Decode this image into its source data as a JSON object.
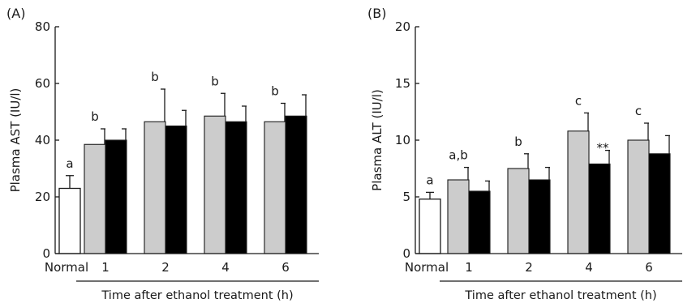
{
  "chart_data": [
    {
      "type": "bar",
      "panel_label": "(A)",
      "ylabel": "Plasma AST (IU/l)",
      "xlabel": "Time after ethanol treatment (h)",
      "ylim": [
        0,
        80
      ],
      "yticks": [
        "0",
        "20",
        "40",
        "60",
        "80"
      ],
      "categories": [
        "Normal",
        "1",
        "2",
        "4",
        "6"
      ],
      "colors": {
        "normal": "#ffffff",
        "grey": "#cccccc",
        "black": "#000000"
      },
      "normal": {
        "value": 23.0,
        "error": 4.5,
        "sig": "a"
      },
      "grey": {
        "values": [
          null,
          38.5,
          46.5,
          48.5,
          46.5
        ],
        "errors": [
          null,
          5.5,
          11.5,
          8.0,
          6.5
        ],
        "sig": [
          null,
          "b",
          "b",
          "b",
          "b"
        ]
      },
      "black": {
        "values": [
          null,
          40.0,
          45.0,
          46.5,
          48.5
        ],
        "errors": [
          null,
          4.0,
          5.5,
          5.5,
          7.5
        ],
        "sig": [
          null,
          "",
          "",
          "",
          ""
        ]
      },
      "grid": false
    },
    {
      "type": "bar",
      "panel_label": "(B)",
      "ylabel": "Plasma ALT (IU/l)",
      "xlabel": "Time after ethanol treatment (h)",
      "ylim": [
        0,
        20
      ],
      "yticks": [
        "0",
        "5",
        "10",
        "15",
        "20"
      ],
      "categories": [
        "Normal",
        "1",
        "2",
        "4",
        "6"
      ],
      "colors": {
        "normal": "#ffffff",
        "grey": "#cccccc",
        "black": "#000000"
      },
      "normal": {
        "value": 4.8,
        "error": 0.6,
        "sig": "a"
      },
      "grey": {
        "values": [
          null,
          6.5,
          7.5,
          10.8,
          10.0
        ],
        "errors": [
          null,
          1.1,
          1.3,
          1.6,
          1.5
        ],
        "sig": [
          null,
          "a,b",
          "b",
          "c",
          "c"
        ]
      },
      "black": {
        "values": [
          null,
          5.5,
          6.5,
          7.9,
          8.8
        ],
        "errors": [
          null,
          0.9,
          1.1,
          1.2,
          1.6
        ],
        "sig": [
          null,
          "",
          "",
          "**",
          ""
        ]
      },
      "grid": false
    }
  ]
}
